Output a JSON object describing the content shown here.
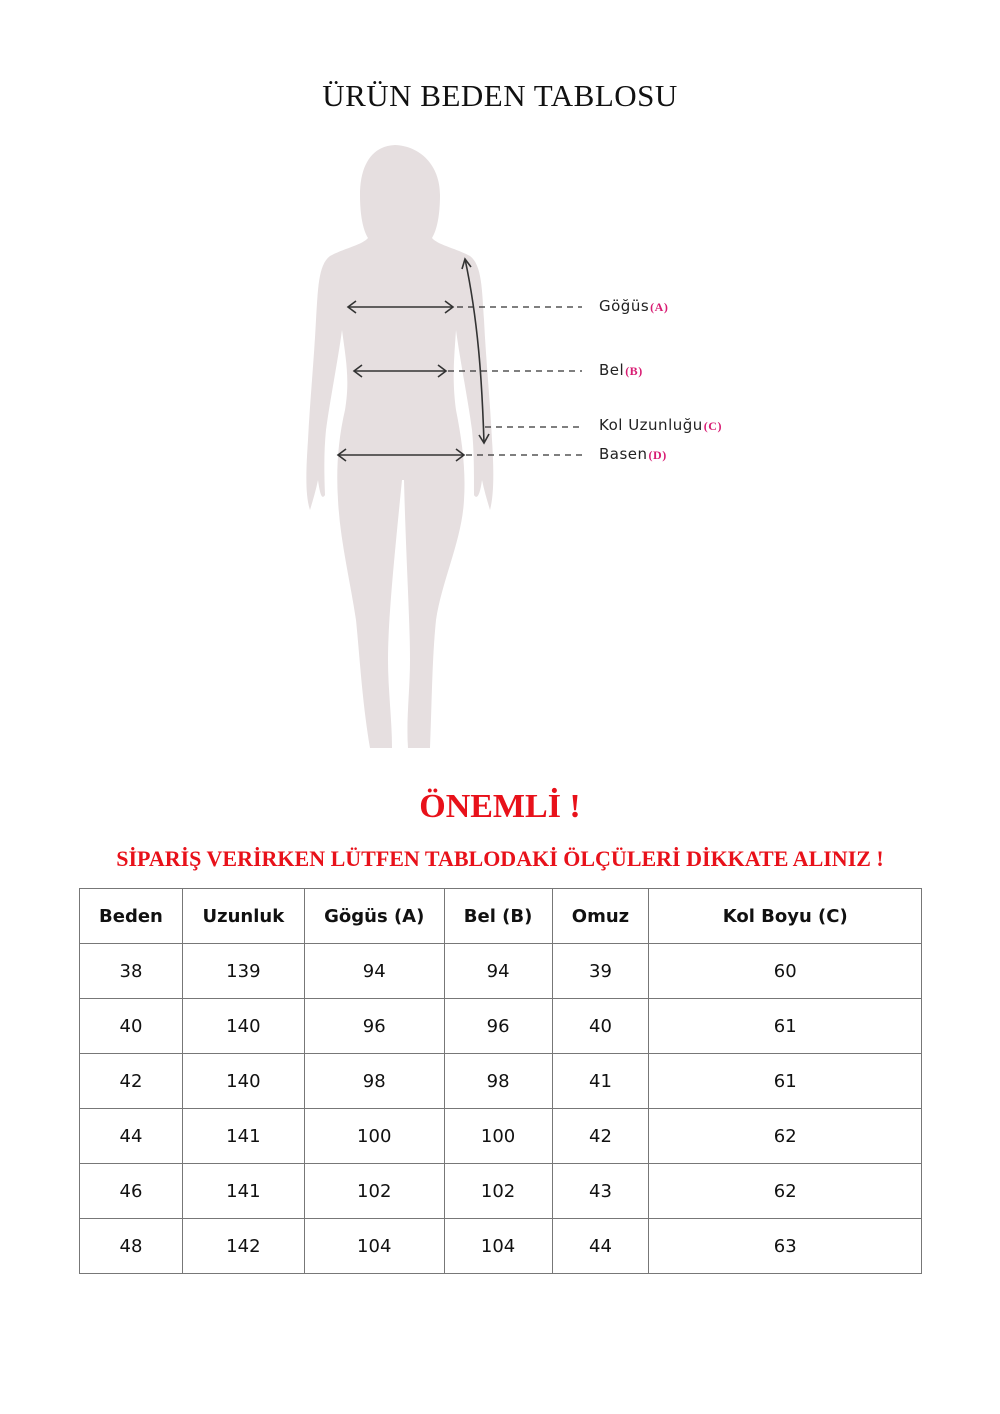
{
  "title": "ÜRÜN BEDEN TABLOSU",
  "figure": {
    "labels": [
      {
        "name": "Göğüs",
        "code": "(A)"
      },
      {
        "name": "Bel",
        "code": "(B)"
      },
      {
        "name": "Kol Uzunluğu",
        "code": "(C)"
      },
      {
        "name": "Basen",
        "code": "(D)"
      }
    ],
    "code_color": "#d81b72",
    "silhouette_color": "#e6dfe0"
  },
  "important": "ÖNEMLİ !",
  "warning": "SİPARİŞ VERİRKEN LÜTFEN TABLODAKİ ÖLÇÜLERİ DİKKATE ALINIZ !",
  "accent_color": "#e8111a",
  "table": {
    "headers": [
      "Beden",
      "Uzunluk",
      "Gögüs (A)",
      "Bel (B)",
      "Omuz",
      "Kol Boyu (C)"
    ],
    "rows": [
      [
        "38",
        "139",
        "94",
        "94",
        "39",
        "60"
      ],
      [
        "40",
        "140",
        "96",
        "96",
        "40",
        "61"
      ],
      [
        "42",
        "140",
        "98",
        "98",
        "41",
        "61"
      ],
      [
        "44",
        "141",
        "100",
        "100",
        "42",
        "62"
      ],
      [
        "46",
        "141",
        "102",
        "102",
        "43",
        "62"
      ],
      [
        "48",
        "142",
        "104",
        "104",
        "44",
        "63"
      ]
    ]
  }
}
